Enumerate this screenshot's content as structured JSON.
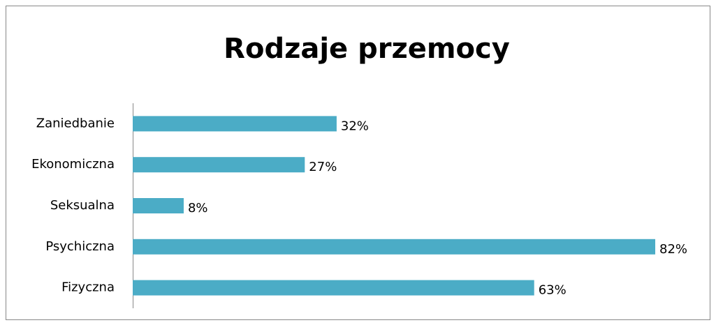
{
  "chart_data": {
    "type": "bar",
    "orientation": "horizontal",
    "title": "Rodzaje przemocy",
    "categories": [
      "Zaniedbanie",
      "Ekonomiczna",
      "Seksualna",
      "Psychiczna",
      "Fizyczna"
    ],
    "values": [
      32,
      27,
      8,
      82,
      63
    ],
    "value_labels": [
      "32%",
      "27%",
      "8%",
      "82%",
      "63%"
    ],
    "color": "#4bacc6",
    "xlim": [
      0,
      90
    ]
  }
}
